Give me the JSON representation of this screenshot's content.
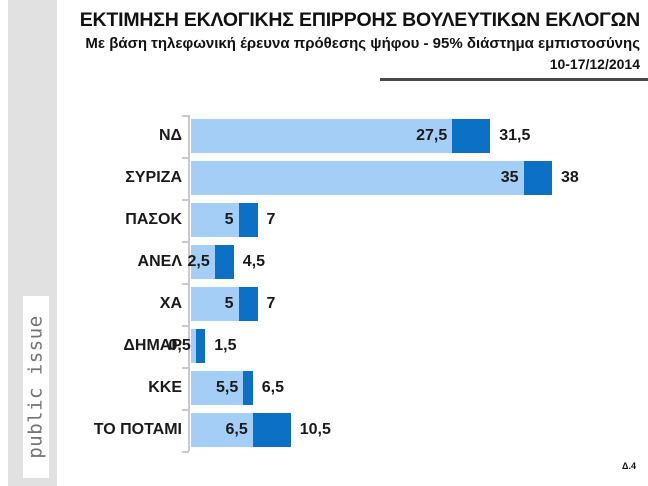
{
  "header": {
    "title": "ΕΚΤΙΜΗΣΗ ΕΚΛΟΓΙΚΗΣ ΕΠΙΡΡΟΗΣ ΒΟΥΛΕΥΤΙΚΩΝ ΕΚΛΟΓΩΝ",
    "subtitle": "Με βάση τηλεφωνική έρευνα πρόθεσης ψήφου - 95% διάστημα εμπιστοσύνης",
    "date_range": "10-17/12/2014"
  },
  "logo": {
    "text": "public issue"
  },
  "footer": {
    "slide_label": "Δ.4"
  },
  "chart_data": {
    "type": "bar",
    "orientation": "horizontal",
    "title": "ΕΚΤΙΜΗΣΗ ΕΚΛΟΓΙΚΗΣ ΕΠΙΡΡΟΗΣ ΒΟΥΛΕΥΤΙΚΩΝ ΕΚΛΟΓΩΝ",
    "subtitle": "Με βάση τηλεφωνική έρευνα πρόθεσης ψήφου - 95% διάστημα εμπιστοσύνης",
    "date_label": "10-17/12/2014",
    "categories": [
      "ΝΔ",
      "ΣΥΡΙΖΑ",
      "ΠΑΣΟΚ",
      "ΑΝΕΛ",
      "ΧΑ",
      "ΔΗΜΑΡ",
      "ΚΚΕ",
      "ΤΟ ΠΟΤΑΜΙ"
    ],
    "series": [
      {
        "name": "lower_estimate",
        "values": [
          27.5,
          35,
          5,
          2.5,
          5,
          0.5,
          5.5,
          6.5
        ]
      },
      {
        "name": "upper_estimate",
        "values": [
          31.5,
          38,
          7,
          4.5,
          7,
          1.5,
          6.5,
          10.5
        ]
      }
    ],
    "value_labels": [
      [
        "27,5",
        "31,5"
      ],
      [
        "35",
        "38"
      ],
      [
        "5",
        "7"
      ],
      [
        "2,5",
        "4,5"
      ],
      [
        "5",
        "7"
      ],
      [
        "0,5",
        "1,5"
      ],
      [
        "5,5",
        "6,5"
      ],
      [
        "6,5",
        "10,5"
      ]
    ],
    "xlim": [
      0,
      40
    ],
    "grid": "off",
    "legend": "none",
    "colors": {
      "range_fill": "#a4cef5",
      "interval_fill": "#0c70c4",
      "axis": "#c9c9c9"
    }
  }
}
